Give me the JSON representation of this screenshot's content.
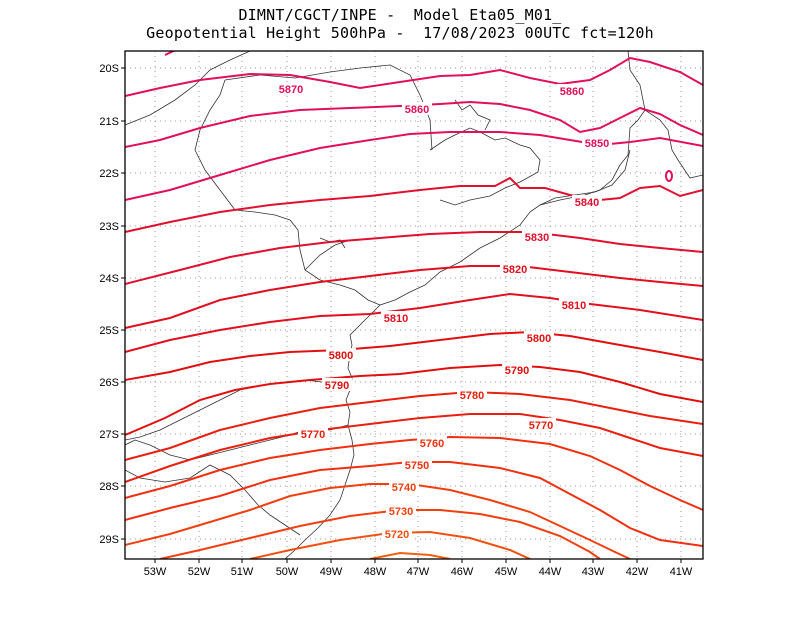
{
  "header": {
    "line1": "DIMNT/CGCT/INPE -  Model Eta05_M01_",
    "line2": "Geopotential Height 500hPa -  17/08/2023 00UTC fct=120h"
  },
  "axes": {
    "lat_labels": [
      "20S",
      "21S",
      "22S",
      "23S",
      "24S",
      "25S",
      "26S",
      "27S",
      "28S",
      "29S"
    ],
    "lon_labels": [
      "53W",
      "52W",
      "51W",
      "50W",
      "49W",
      "48W",
      "47W",
      "46W",
      "45W",
      "44W",
      "43W",
      "42W",
      "41W"
    ]
  },
  "contour_labels": [
    {
      "value": "5870",
      "color": "#e0105a"
    },
    {
      "value": "5860",
      "color": "#e0105a"
    },
    {
      "value": "5860",
      "color": "#e0105a"
    },
    {
      "value": "5850",
      "color": "#e0105a"
    },
    {
      "value": "5840",
      "color": "#e01030"
    },
    {
      "value": "5830",
      "color": "#e01030"
    },
    {
      "value": "5820",
      "color": "#e01020"
    },
    {
      "value": "5810",
      "color": "#e01020"
    },
    {
      "value": "5810",
      "color": "#e01020"
    },
    {
      "value": "5800",
      "color": "#e01010"
    },
    {
      "value": "5800",
      "color": "#e01010"
    },
    {
      "value": "5790",
      "color": "#e01010"
    },
    {
      "value": "5790",
      "color": "#e01010"
    },
    {
      "value": "5780",
      "color": "#e82010"
    },
    {
      "value": "5770",
      "color": "#e82010"
    },
    {
      "value": "5770",
      "color": "#e82010"
    },
    {
      "value": "5760",
      "color": "#f03010"
    },
    {
      "value": "5750",
      "color": "#f03010"
    },
    {
      "value": "5740",
      "color": "#f04010"
    },
    {
      "value": "5730",
      "color": "#f04010"
    },
    {
      "value": "5720",
      "color": "#f05010"
    },
    {
      "value": "0",
      "color": "#e0105a"
    }
  ]
}
